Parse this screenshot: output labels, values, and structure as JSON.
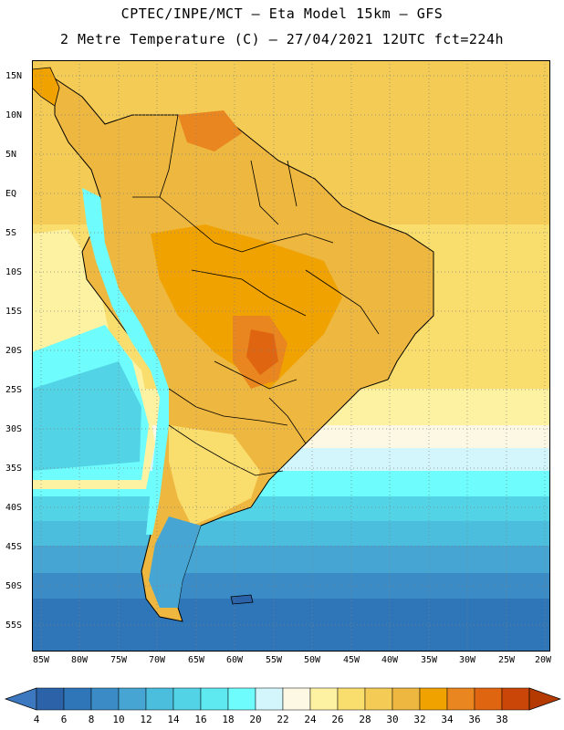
{
  "header": {
    "line1": "CPTEC/INPE/MCT –  Eta Model 15km – GFS",
    "line2": "2 Metre Temperature (C) – 27/04/2021 12UTC fct=224h"
  },
  "map": {
    "region": "South America",
    "variable": "2 Metre Temperature",
    "units": "C",
    "lat_labels": [
      "15N",
      "10N",
      "5N",
      "EQ",
      "5S",
      "10S",
      "15S",
      "20S",
      "25S",
      "30S",
      "35S",
      "40S",
      "45S",
      "50S",
      "55S"
    ],
    "lat_values": [
      15,
      10,
      5,
      0,
      -5,
      -10,
      -15,
      -20,
      -25,
      -30,
      -35,
      -40,
      -45,
      -50,
      -55
    ],
    "lon_labels": [
      "85W",
      "80W",
      "75W",
      "70W",
      "65W",
      "60W",
      "55W",
      "50W",
      "45W",
      "40W",
      "35W",
      "30W",
      "25W",
      "20W"
    ],
    "lon_values": [
      -85,
      -80,
      -75,
      -70,
      -65,
      -60,
      -55,
      -50,
      -45,
      -40,
      -35,
      -30,
      -25,
      -20
    ]
  },
  "colorbar": {
    "labels": [
      "4",
      "6",
      "8",
      "10",
      "12",
      "14",
      "16",
      "18",
      "20",
      "22",
      "24",
      "26",
      "28",
      "30",
      "32",
      "34",
      "36",
      "38"
    ],
    "colors": [
      "#2b62a8",
      "#2f76b8",
      "#3b8cc6",
      "#46a5d3",
      "#4bbedd",
      "#52d4e6",
      "#5ee9f0",
      "#6ffcfc",
      "#d2f6fc",
      "#fdf8e4",
      "#fdf2a2",
      "#f9de6e",
      "#f4cc55",
      "#eeb73f",
      "#f0a200",
      "#e9861f",
      "#df6511",
      "#c94608",
      "#b53a02"
    ],
    "left_arrow_color": "#3b78c0",
    "right_arrow_color": "#b53a02"
  }
}
